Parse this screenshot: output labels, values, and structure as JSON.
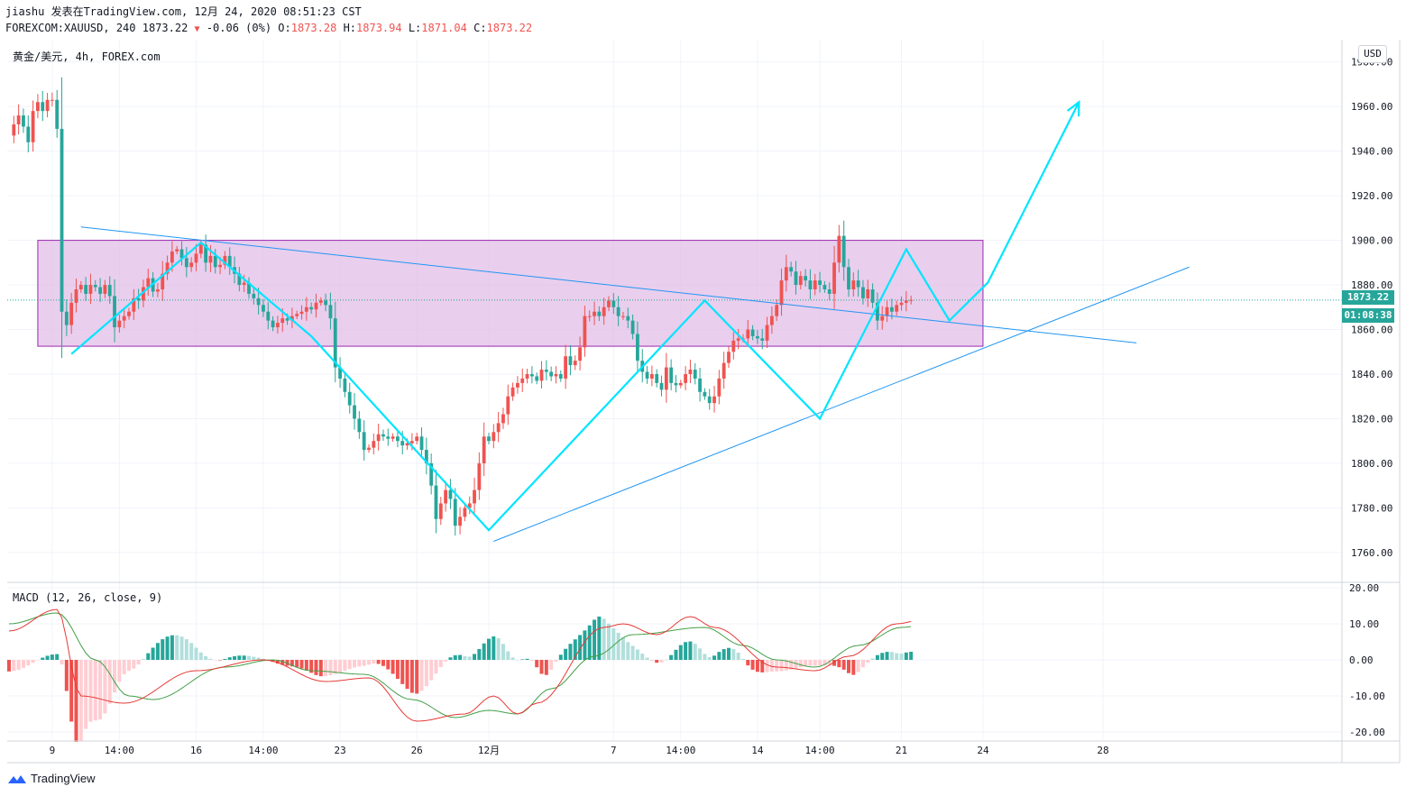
{
  "header": {
    "line1": "jiashu 发表在TradingView.com, 12月 24, 2020 08:51:23 CST",
    "symbol": "FOREXCOM:XAUUSD, 240",
    "last": "1873.22",
    "arrow": "▼",
    "change": "-0.06 (0%)",
    "o_label": "O:",
    "o": "1873.28",
    "h_label": "H:",
    "h": "1873.94",
    "l_label": "L:",
    "l": "1871.04",
    "c_label": "C:",
    "c": "1873.22"
  },
  "symbol_label": "黄金/美元, 4h, FOREX.com",
  "macd_label": "MACD (12, 26, close, 9)",
  "currency": "USD",
  "price_tag": "1873.22",
  "time_tag": "01:08:38",
  "brand": "TradingView",
  "colors": {
    "up": "#ef5350",
    "down": "#26a69a",
    "zone": "#e1bee7",
    "zone_border": "#9c27b0",
    "wave": "#00e5ff",
    "trend": "#2196f3",
    "macd": "#e53935",
    "signal": "#43a047"
  },
  "chart_data": {
    "type": "candlestick",
    "price_axis": {
      "ticks": [
        1760,
        1780,
        1800,
        1820,
        1840,
        1860,
        1880,
        1900,
        1920,
        1940,
        1960,
        1980
      ],
      "labels": [
        "1760.00",
        "1780.00",
        "1800.00",
        "1820.00",
        "1840.00",
        "1860.00",
        "1880.00",
        "1900.00",
        "1920.00",
        "1940.00",
        "1960.00",
        "1980.00"
      ],
      "ylim": [
        1747,
        1990
      ]
    },
    "time_axis": {
      "labels": [
        "9",
        "14:00",
        "16",
        "14:00",
        "23",
        "26",
        "12月",
        "7",
        "14:00",
        "14",
        "14:00",
        "21",
        "24",
        "28"
      ],
      "bar_index": [
        9,
        23,
        39,
        53,
        69,
        85,
        100,
        126,
        140,
        156,
        169,
        186,
        203,
        228
      ]
    },
    "close_price": 1873.22,
    "closes": [
      1947,
      1952,
      1956,
      1951,
      1944,
      1958,
      1962,
      1958,
      1963,
      1963,
      1950,
      1868,
      1862,
      1872,
      1878,
      1880,
      1876,
      1880,
      1879,
      1876,
      1880,
      1875,
      1861,
      1864,
      1866,
      1868,
      1874,
      1873,
      1879,
      1883,
      1877,
      1878,
      1885,
      1890,
      1895,
      1896,
      1892,
      1888,
      1890,
      1894,
      1898,
      1890,
      1893,
      1888,
      1889,
      1893,
      1888,
      1885,
      1880,
      1881,
      1876,
      1874,
      1871,
      1868,
      1864,
      1861,
      1863,
      1865,
      1864,
      1866,
      1867,
      1868,
      1870,
      1869,
      1872,
      1873,
      1871,
      1865,
      1843,
      1838,
      1832,
      1826,
      1820,
      1814,
      1806,
      1807,
      1810,
      1813,
      1812,
      1811,
      1812,
      1810,
      1808,
      1809,
      1810,
      1812,
      1806,
      1800,
      1790,
      1775,
      1782,
      1788,
      1784,
      1772,
      1776,
      1780,
      1782,
      1788,
      1800,
      1812,
      1810,
      1814,
      1818,
      1822,
      1830,
      1834,
      1836,
      1838,
      1840,
      1839,
      1837,
      1842,
      1841,
      1839,
      1840,
      1838,
      1848,
      1844,
      1846,
      1852,
      1866,
      1866,
      1868,
      1866,
      1870,
      1873,
      1870,
      1866,
      1866,
      1864,
      1858,
      1846,
      1841,
      1838,
      1840,
      1836,
      1833,
      1843,
      1836,
      1835,
      1836,
      1840,
      1842,
      1838,
      1832,
      1830,
      1827,
      1830,
      1838,
      1845,
      1850,
      1855,
      1856,
      1856,
      1860,
      1857,
      1856,
      1855,
      1862,
      1866,
      1871,
      1882,
      1888,
      1886,
      1880,
      1884,
      1882,
      1878,
      1882,
      1880,
      1878,
      1876,
      1890,
      1902,
      1888,
      1878,
      1882,
      1879,
      1874,
      1878,
      1872,
      1864,
      1866,
      1870,
      1868,
      1871,
      1872,
      1873,
      1873.22
    ],
    "annotations": {
      "zone": {
        "from_bar": 6,
        "to_bar": 203,
        "low": 1852.5,
        "high": 1900
      },
      "wave": [
        [
          13,
          1849
        ],
        [
          40,
          1899
        ],
        [
          63,
          1857
        ],
        [
          100,
          1770
        ],
        [
          145,
          1873
        ],
        [
          169,
          1820
        ],
        [
          187,
          1896
        ],
        [
          196,
          1864
        ],
        [
          204,
          1881
        ],
        [
          223,
          1962
        ]
      ],
      "trendlines": [
        [
          [
            15,
            1906
          ],
          [
            235,
            1854
          ]
        ],
        [
          [
            101,
            1765
          ],
          [
            246,
            1888
          ]
        ]
      ]
    },
    "macd": {
      "ticks": [
        -20,
        -10,
        0,
        10,
        20
      ],
      "labels": [
        "-20.00",
        "-10.00",
        "0.00",
        "10.00",
        "20.00"
      ],
      "ylim": [
        -22,
        21
      ],
      "macd_line": [
        [
          0,
          8
        ],
        [
          10,
          14
        ],
        [
          15,
          -10
        ],
        [
          24,
          -12
        ],
        [
          39,
          -3
        ],
        [
          53,
          0
        ],
        [
          66,
          -6
        ],
        [
          75,
          -5
        ],
        [
          85,
          -17
        ],
        [
          95,
          -15
        ],
        [
          101,
          -10
        ],
        [
          106,
          -15
        ],
        [
          110,
          -12
        ],
        [
          124,
          9
        ],
        [
          128,
          10
        ],
        [
          135,
          7
        ],
        [
          142,
          12
        ],
        [
          147,
          9
        ],
        [
          160,
          -2
        ],
        [
          168,
          -3
        ],
        [
          175,
          1
        ],
        [
          185,
          10
        ],
        [
          190,
          11
        ],
        [
          195,
          5
        ],
        [
          201,
          0
        ],
        [
          212,
          -3
        ]
      ],
      "signal_line": [
        [
          0,
          10
        ],
        [
          10,
          13
        ],
        [
          18,
          0
        ],
        [
          25,
          -10
        ],
        [
          30,
          -11
        ],
        [
          45,
          -2
        ],
        [
          55,
          0
        ],
        [
          63,
          -3
        ],
        [
          74,
          -4
        ],
        [
          84,
          -11
        ],
        [
          93,
          -16
        ],
        [
          100,
          -14
        ],
        [
          106,
          -15
        ],
        [
          113,
          -8
        ],
        [
          122,
          1
        ],
        [
          130,
          7
        ],
        [
          145,
          9
        ],
        [
          153,
          4
        ],
        [
          160,
          0
        ],
        [
          168,
          -2
        ],
        [
          177,
          4
        ],
        [
          186,
          9
        ],
        [
          192,
          10
        ],
        [
          203,
          5
        ],
        [
          212,
          1
        ]
      ],
      "histogram_sign": "computed as macd minus signal"
    }
  }
}
